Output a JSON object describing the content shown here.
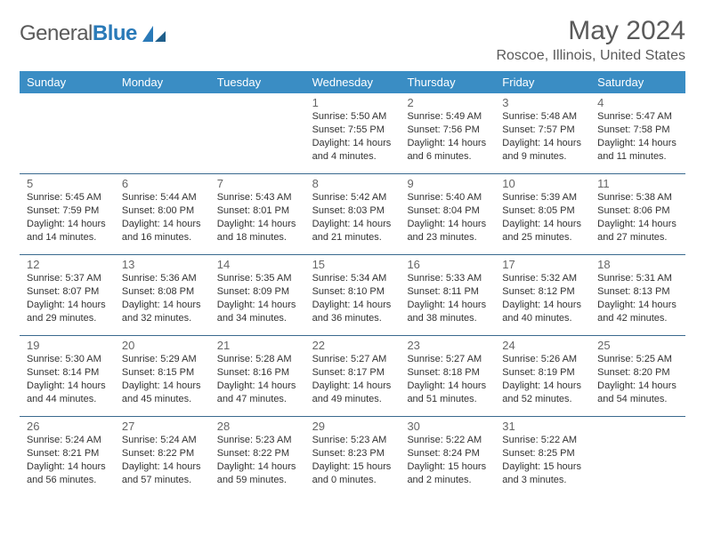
{
  "brand": {
    "name_part1": "General",
    "name_part2": "Blue"
  },
  "title": "May 2024",
  "location": "Roscoe, Illinois, United States",
  "colors": {
    "header_bg": "#3a8dc4",
    "header_text": "#ffffff",
    "row_border": "#3a6a8f",
    "text": "#333333",
    "muted": "#5a5a5a",
    "brand_blue": "#2a7ab8",
    "background": "#ffffff"
  },
  "day_labels": [
    "Sunday",
    "Monday",
    "Tuesday",
    "Wednesday",
    "Thursday",
    "Friday",
    "Saturday"
  ],
  "weeks": [
    [
      {
        "n": "",
        "sr": "",
        "ss": "",
        "dl": ""
      },
      {
        "n": "",
        "sr": "",
        "ss": "",
        "dl": ""
      },
      {
        "n": "",
        "sr": "",
        "ss": "",
        "dl": ""
      },
      {
        "n": "1",
        "sr": "Sunrise: 5:50 AM",
        "ss": "Sunset: 7:55 PM",
        "dl": "Daylight: 14 hours and 4 minutes."
      },
      {
        "n": "2",
        "sr": "Sunrise: 5:49 AM",
        "ss": "Sunset: 7:56 PM",
        "dl": "Daylight: 14 hours and 6 minutes."
      },
      {
        "n": "3",
        "sr": "Sunrise: 5:48 AM",
        "ss": "Sunset: 7:57 PM",
        "dl": "Daylight: 14 hours and 9 minutes."
      },
      {
        "n": "4",
        "sr": "Sunrise: 5:47 AM",
        "ss": "Sunset: 7:58 PM",
        "dl": "Daylight: 14 hours and 11 minutes."
      }
    ],
    [
      {
        "n": "5",
        "sr": "Sunrise: 5:45 AM",
        "ss": "Sunset: 7:59 PM",
        "dl": "Daylight: 14 hours and 14 minutes."
      },
      {
        "n": "6",
        "sr": "Sunrise: 5:44 AM",
        "ss": "Sunset: 8:00 PM",
        "dl": "Daylight: 14 hours and 16 minutes."
      },
      {
        "n": "7",
        "sr": "Sunrise: 5:43 AM",
        "ss": "Sunset: 8:01 PM",
        "dl": "Daylight: 14 hours and 18 minutes."
      },
      {
        "n": "8",
        "sr": "Sunrise: 5:42 AM",
        "ss": "Sunset: 8:03 PM",
        "dl": "Daylight: 14 hours and 21 minutes."
      },
      {
        "n": "9",
        "sr": "Sunrise: 5:40 AM",
        "ss": "Sunset: 8:04 PM",
        "dl": "Daylight: 14 hours and 23 minutes."
      },
      {
        "n": "10",
        "sr": "Sunrise: 5:39 AM",
        "ss": "Sunset: 8:05 PM",
        "dl": "Daylight: 14 hours and 25 minutes."
      },
      {
        "n": "11",
        "sr": "Sunrise: 5:38 AM",
        "ss": "Sunset: 8:06 PM",
        "dl": "Daylight: 14 hours and 27 minutes."
      }
    ],
    [
      {
        "n": "12",
        "sr": "Sunrise: 5:37 AM",
        "ss": "Sunset: 8:07 PM",
        "dl": "Daylight: 14 hours and 29 minutes."
      },
      {
        "n": "13",
        "sr": "Sunrise: 5:36 AM",
        "ss": "Sunset: 8:08 PM",
        "dl": "Daylight: 14 hours and 32 minutes."
      },
      {
        "n": "14",
        "sr": "Sunrise: 5:35 AM",
        "ss": "Sunset: 8:09 PM",
        "dl": "Daylight: 14 hours and 34 minutes."
      },
      {
        "n": "15",
        "sr": "Sunrise: 5:34 AM",
        "ss": "Sunset: 8:10 PM",
        "dl": "Daylight: 14 hours and 36 minutes."
      },
      {
        "n": "16",
        "sr": "Sunrise: 5:33 AM",
        "ss": "Sunset: 8:11 PM",
        "dl": "Daylight: 14 hours and 38 minutes."
      },
      {
        "n": "17",
        "sr": "Sunrise: 5:32 AM",
        "ss": "Sunset: 8:12 PM",
        "dl": "Daylight: 14 hours and 40 minutes."
      },
      {
        "n": "18",
        "sr": "Sunrise: 5:31 AM",
        "ss": "Sunset: 8:13 PM",
        "dl": "Daylight: 14 hours and 42 minutes."
      }
    ],
    [
      {
        "n": "19",
        "sr": "Sunrise: 5:30 AM",
        "ss": "Sunset: 8:14 PM",
        "dl": "Daylight: 14 hours and 44 minutes."
      },
      {
        "n": "20",
        "sr": "Sunrise: 5:29 AM",
        "ss": "Sunset: 8:15 PM",
        "dl": "Daylight: 14 hours and 45 minutes."
      },
      {
        "n": "21",
        "sr": "Sunrise: 5:28 AM",
        "ss": "Sunset: 8:16 PM",
        "dl": "Daylight: 14 hours and 47 minutes."
      },
      {
        "n": "22",
        "sr": "Sunrise: 5:27 AM",
        "ss": "Sunset: 8:17 PM",
        "dl": "Daylight: 14 hours and 49 minutes."
      },
      {
        "n": "23",
        "sr": "Sunrise: 5:27 AM",
        "ss": "Sunset: 8:18 PM",
        "dl": "Daylight: 14 hours and 51 minutes."
      },
      {
        "n": "24",
        "sr": "Sunrise: 5:26 AM",
        "ss": "Sunset: 8:19 PM",
        "dl": "Daylight: 14 hours and 52 minutes."
      },
      {
        "n": "25",
        "sr": "Sunrise: 5:25 AM",
        "ss": "Sunset: 8:20 PM",
        "dl": "Daylight: 14 hours and 54 minutes."
      }
    ],
    [
      {
        "n": "26",
        "sr": "Sunrise: 5:24 AM",
        "ss": "Sunset: 8:21 PM",
        "dl": "Daylight: 14 hours and 56 minutes."
      },
      {
        "n": "27",
        "sr": "Sunrise: 5:24 AM",
        "ss": "Sunset: 8:22 PM",
        "dl": "Daylight: 14 hours and 57 minutes."
      },
      {
        "n": "28",
        "sr": "Sunrise: 5:23 AM",
        "ss": "Sunset: 8:22 PM",
        "dl": "Daylight: 14 hours and 59 minutes."
      },
      {
        "n": "29",
        "sr": "Sunrise: 5:23 AM",
        "ss": "Sunset: 8:23 PM",
        "dl": "Daylight: 15 hours and 0 minutes."
      },
      {
        "n": "30",
        "sr": "Sunrise: 5:22 AM",
        "ss": "Sunset: 8:24 PM",
        "dl": "Daylight: 15 hours and 2 minutes."
      },
      {
        "n": "31",
        "sr": "Sunrise: 5:22 AM",
        "ss": "Sunset: 8:25 PM",
        "dl": "Daylight: 15 hours and 3 minutes."
      },
      {
        "n": "",
        "sr": "",
        "ss": "",
        "dl": ""
      }
    ]
  ]
}
